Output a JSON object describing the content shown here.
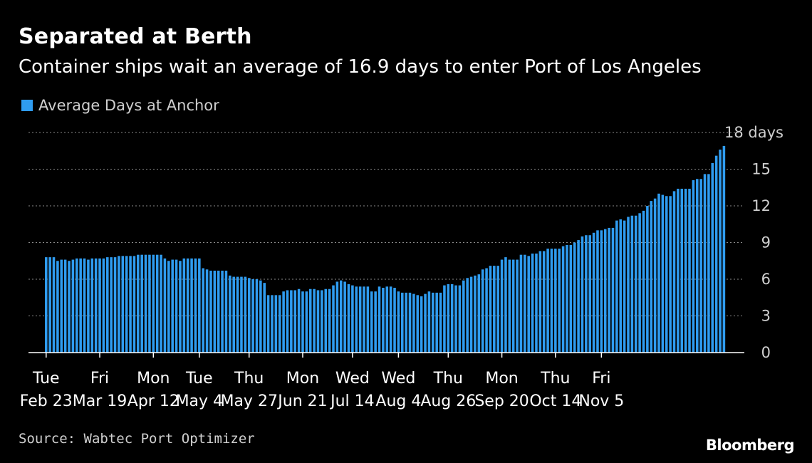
{
  "header": {
    "title": "Separated at Berth",
    "subtitle": "Container ships wait an average of 16.9 days to enter Port of Los Angeles"
  },
  "legend": {
    "label": "Average Days at Anchor"
  },
  "footer": {
    "source": "Source: Wabtec Port Optimizer",
    "brand": "Bloomberg"
  },
  "colors": {
    "bar": "#2f9cf0",
    "background": "#000000",
    "grid": "#8a8a8a",
    "axis": "#ffffff"
  },
  "chart_data": {
    "type": "bar",
    "ylim": [
      0,
      18
    ],
    "y_ticks": [
      {
        "value": 0,
        "label": "0"
      },
      {
        "value": 3,
        "label": "3"
      },
      {
        "value": 6,
        "label": "6"
      },
      {
        "value": 9,
        "label": "9"
      },
      {
        "value": 12,
        "label": "12"
      },
      {
        "value": 15,
        "label": "15"
      },
      {
        "value": 18,
        "label": "18 days"
      }
    ],
    "x_ticks": [
      {
        "index": 0,
        "day": "Tue",
        "date": "Feb 23"
      },
      {
        "index": 14,
        "day": "Fri",
        "date": "Mar 19"
      },
      {
        "index": 28,
        "day": "Mon",
        "date": "Apr 12"
      },
      {
        "index": 40,
        "day": "Tue",
        "date": "May 4"
      },
      {
        "index": 53,
        "day": "Thu",
        "date": "May 27"
      },
      {
        "index": 67,
        "day": "Mon",
        "date": "Jun 21"
      },
      {
        "index": 80,
        "day": "Wed",
        "date": "Jul 14"
      },
      {
        "index": 92,
        "day": "Wed",
        "date": "Aug 4"
      },
      {
        "index": 105,
        "day": "Thu",
        "date": "Aug 26"
      },
      {
        "index": 119,
        "day": "Mon",
        "date": "Sep 20"
      },
      {
        "index": 133,
        "day": "Thu",
        "date": "Oct 14"
      },
      {
        "index": 145,
        "day": "Fri",
        "date": "Nov 5"
      }
    ],
    "legend_position": "top-left",
    "grid": true,
    "series": [
      {
        "name": "Average Days at Anchor",
        "values": [
          7.8,
          7.8,
          7.8,
          7.5,
          7.6,
          7.6,
          7.5,
          7.6,
          7.7,
          7.7,
          7.7,
          7.6,
          7.7,
          7.7,
          7.7,
          7.7,
          7.8,
          7.8,
          7.8,
          7.9,
          7.9,
          7.9,
          7.9,
          7.9,
          8.0,
          8.0,
          8.0,
          8.0,
          8.0,
          8.0,
          8.0,
          7.7,
          7.5,
          7.6,
          7.6,
          7.5,
          7.7,
          7.7,
          7.7,
          7.7,
          7.7,
          6.9,
          6.8,
          6.7,
          6.7,
          6.7,
          6.7,
          6.7,
          6.3,
          6.2,
          6.2,
          6.2,
          6.2,
          6.1,
          6.0,
          6.0,
          5.9,
          5.7,
          4.7,
          4.7,
          4.7,
          4.7,
          5.0,
          5.1,
          5.1,
          5.1,
          5.2,
          5.0,
          5.0,
          5.2,
          5.2,
          5.1,
          5.1,
          5.2,
          5.2,
          5.5,
          5.8,
          5.9,
          5.8,
          5.6,
          5.5,
          5.4,
          5.4,
          5.4,
          5.4,
          5.0,
          5.0,
          5.4,
          5.3,
          5.4,
          5.4,
          5.3,
          5.0,
          4.9,
          4.9,
          4.9,
          4.8,
          4.7,
          4.6,
          4.8,
          5.0,
          4.9,
          4.9,
          4.9,
          5.5,
          5.6,
          5.6,
          5.5,
          5.5,
          5.9,
          6.1,
          6.2,
          6.3,
          6.4,
          6.8,
          6.9,
          7.1,
          7.1,
          7.1,
          7.6,
          7.8,
          7.6,
          7.6,
          7.6,
          8.0,
          8.0,
          7.9,
          8.1,
          8.1,
          8.3,
          8.3,
          8.5,
          8.5,
          8.5,
          8.5,
          8.7,
          8.8,
          8.8,
          9.0,
          9.2,
          9.5,
          9.6,
          9.6,
          9.8,
          10.0,
          10.0,
          10.1,
          10.2,
          10.2,
          10.8,
          10.9,
          10.8,
          11.1,
          11.2,
          11.2,
          11.4,
          11.6,
          12.0,
          12.4,
          12.6,
          13.0,
          12.9,
          12.8,
          12.8,
          13.2,
          13.4,
          13.4,
          13.4,
          13.4,
          14.1,
          14.2,
          14.2,
          14.6,
          14.6,
          15.5,
          16.1,
          16.6,
          16.9
        ]
      }
    ]
  }
}
